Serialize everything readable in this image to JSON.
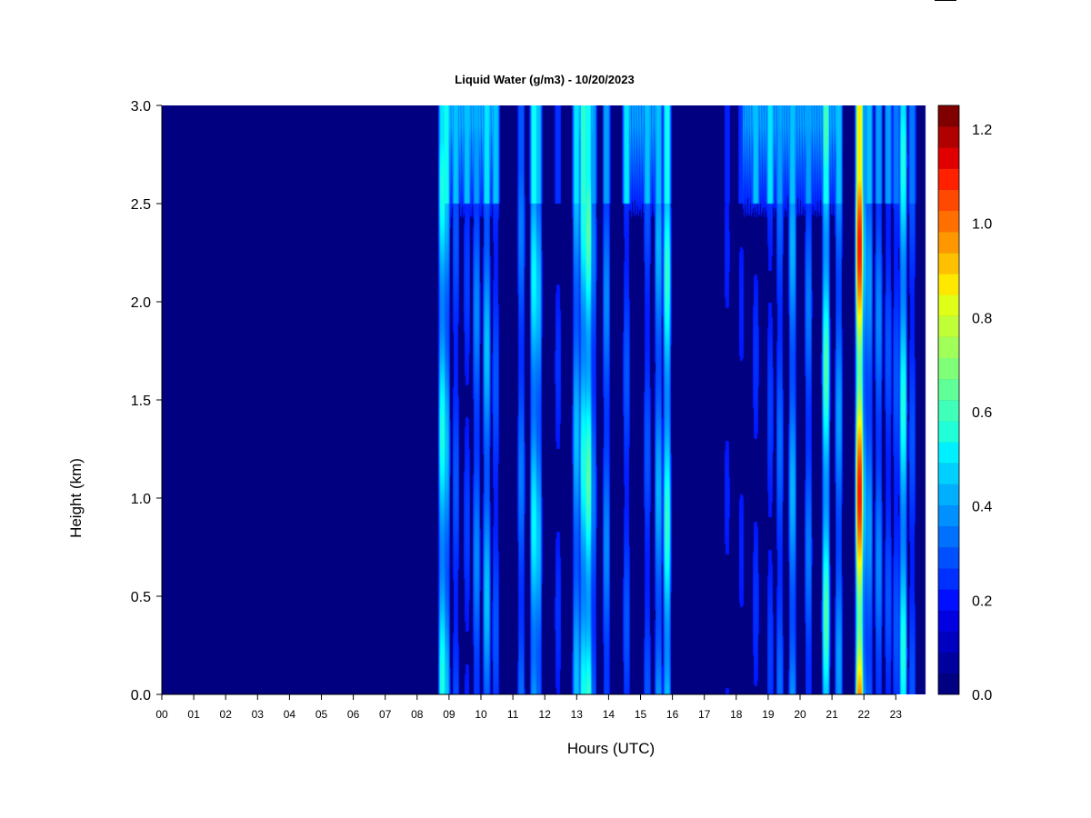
{
  "chart_data": {
    "type": "heatmap",
    "title": "Liquid Water (g/m3) - 10/20/2023",
    "xlabel": "Hours (UTC)",
    "ylabel": "Height (km)",
    "x_ticks": [
      "00",
      "01",
      "02",
      "03",
      "04",
      "05",
      "06",
      "07",
      "08",
      "09",
      "10",
      "11",
      "12",
      "13",
      "14",
      "15",
      "16",
      "17",
      "18",
      "19",
      "20",
      "21",
      "22",
      "23"
    ],
    "y_ticks": [
      "0.0",
      "0.5",
      "1.0",
      "1.5",
      "2.0",
      "2.5",
      "3.0"
    ],
    "xlim": [
      0,
      24
    ],
    "ylim": [
      0,
      3.0
    ],
    "colorbar": {
      "label_ticks": [
        "0.0",
        "0.2",
        "0.4",
        "0.6",
        "0.8",
        "1.0",
        "1.2"
      ],
      "range": [
        0,
        1.25
      ],
      "levels": 25,
      "colors": [
        "#000080",
        "#00009f",
        "#0000c0",
        "#0000e0",
        "#0010ff",
        "#0030ff",
        "#0050ff",
        "#0070ff",
        "#0090ff",
        "#00b0ff",
        "#00d0ff",
        "#00f0ff",
        "#20ffd8",
        "#40ffb8",
        "#60ff98",
        "#80ff78",
        "#a0ff58",
        "#c0ff38",
        "#e0ff18",
        "#ffe800",
        "#ffc000",
        "#ff9800",
        "#ff7000",
        "#ff4800",
        "#ff2000",
        "#e00000",
        "#b00000",
        "#800000"
      ]
    },
    "background_value": 0.02,
    "events": [
      {
        "hour": 8.78,
        "peak": 0.42,
        "top": 0.35
      },
      {
        "hour": 8.9,
        "peak": 0.3,
        "top": 0.4
      },
      {
        "hour": 9.2,
        "peak": 0.15,
        "top": 0.3
      },
      {
        "hour": 9.55,
        "peak": 0.12,
        "top": 0.3
      },
      {
        "hour": 9.85,
        "peak": 0.22,
        "top": 0.25
      },
      {
        "hour": 10.17,
        "peak": 0.3,
        "top": 0.35
      },
      {
        "hour": 10.45,
        "peak": 0.15,
        "top": 0.3
      },
      {
        "hour": 11.25,
        "peak": 0.2,
        "top": 0.15
      },
      {
        "hour": 11.65,
        "peak": 0.38,
        "top": 0.4
      },
      {
        "hour": 11.78,
        "peak": 0.3,
        "top": 0.3
      },
      {
        "hour": 12.4,
        "peak": 0.1,
        "top": 0.1
      },
      {
        "hour": 12.98,
        "peak": 0.3,
        "top": 0.35
      },
      {
        "hour": 13.2,
        "peak": 0.42,
        "top": 0.45
      },
      {
        "hour": 13.35,
        "peak": 0.5,
        "top": 0.4
      },
      {
        "hour": 13.5,
        "peak": 0.2,
        "top": 0.25
      },
      {
        "hour": 13.92,
        "peak": 0.22,
        "top": 0.25
      },
      {
        "hour": 14.55,
        "peak": 0.15,
        "top": 0.35
      },
      {
        "hour": 15.2,
        "peak": 0.15,
        "top": 0.3
      },
      {
        "hour": 15.55,
        "peak": 0.28,
        "top": 0.3
      },
      {
        "hour": 15.82,
        "peak": 0.45,
        "top": 0.4
      },
      {
        "hour": 17.7,
        "peak": 0.08,
        "top": 0.08
      },
      {
        "hour": 18.15,
        "peak": 0.08,
        "top": 0.1
      },
      {
        "hour": 18.6,
        "peak": 0.1,
        "top": 0.3
      },
      {
        "hour": 19.05,
        "peak": 0.12,
        "top": 0.35
      },
      {
        "hour": 19.35,
        "peak": 0.18,
        "top": 0.25
      },
      {
        "hour": 19.75,
        "peak": 0.28,
        "top": 0.3
      },
      {
        "hour": 20.25,
        "peak": 0.2,
        "top": 0.25
      },
      {
        "hour": 20.8,
        "peak": 0.48,
        "top": 0.4
      },
      {
        "hour": 21.2,
        "peak": 0.25,
        "top": 0.3
      },
      {
        "hour": 21.85,
        "peak": 1.05,
        "top": 0.75
      },
      {
        "hour": 21.98,
        "peak": 0.3,
        "top": 0.25
      },
      {
        "hour": 22.15,
        "peak": 0.25,
        "top": 0.3
      },
      {
        "hour": 22.45,
        "peak": 0.22,
        "top": 0.25
      },
      {
        "hour": 22.75,
        "peak": 0.15,
        "top": 0.25
      },
      {
        "hour": 23.0,
        "peak": 0.15,
        "top": 0.2
      },
      {
        "hour": 23.22,
        "peak": 0.42,
        "top": 0.35
      },
      {
        "hour": 23.5,
        "peak": 0.15,
        "top": 0.2
      }
    ],
    "upper_diffuse": [
      {
        "start": 8.75,
        "end": 10.55,
        "value": 0.3
      },
      {
        "start": 12.9,
        "end": 13.5,
        "value": 0.3
      },
      {
        "start": 14.6,
        "end": 15.6,
        "value": 0.28
      },
      {
        "start": 18.2,
        "end": 21.3,
        "value": 0.28
      }
    ],
    "data_end_hour": 23.9
  }
}
